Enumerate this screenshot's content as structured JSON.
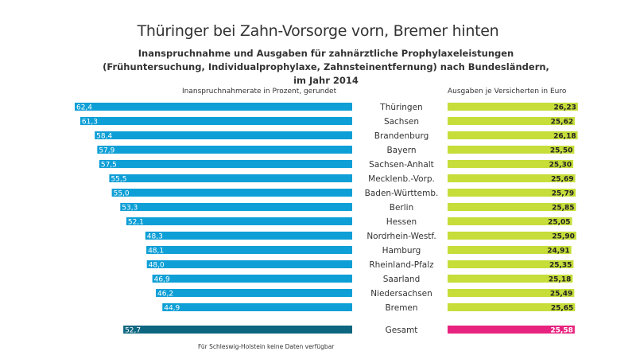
{
  "chart_data": {
    "type": "bar",
    "title": "Thüringer bei Zahn-Vorsorge vorn, Bremer hinten",
    "subtitle": "Inanspruchnahme und Ausgaben für zahnärztliche Prophylaxeleistungen (Frühuntersuchung, Individualprophylaxe, Zahnsteinentfernung) nach Bundesländern, im Jahr 2014",
    "categories": [
      "Thüringen",
      "Sachsen",
      "Brandenburg",
      "Bayern",
      "Sachsen-Anhalt",
      "Mecklenb.-Vorp.",
      "Baden-Württemb.",
      "Berlin",
      "Hessen",
      "Nordrhein-Westf.",
      "Hamburg",
      "Rheinland-Pfalz",
      "Saarland",
      "Niedersachsen",
      "Bremen"
    ],
    "series": [
      {
        "name": "Inanspruchnahmerate in Prozent, gerundet",
        "values": [
          62.4,
          61.3,
          58.4,
          57.9,
          57.5,
          55.5,
          55.0,
          53.3,
          52.1,
          48.3,
          48.1,
          48.0,
          46.9,
          46.2,
          44.9
        ],
        "labels": [
          "62,4",
          "61,3",
          "58,4",
          "57,9",
          "57,5",
          "55,5",
          "55,0",
          "53,3",
          "52,1",
          "48,3",
          "48,1",
          "48,0",
          "46,9",
          "46,2",
          "44,9"
        ],
        "color": "#0e9fd6",
        "direction": "left"
      },
      {
        "name": "Ausgaben je Versicherten in Euro",
        "values": [
          26.23,
          25.62,
          26.18,
          25.5,
          25.3,
          25.69,
          25.79,
          25.85,
          25.05,
          25.9,
          24.91,
          25.35,
          25.18,
          25.49,
          25.65
        ],
        "labels": [
          "26,23",
          "25,62",
          "26,18",
          "25,50",
          "25,30",
          "25,69",
          "25,79",
          "25,85",
          "25,05",
          "25,90",
          "24,91",
          "25,35",
          "25,18",
          "25,49",
          "25,65"
        ],
        "color": "#c6dd3a",
        "direction": "right"
      }
    ],
    "total": {
      "label": "Gesamt",
      "rate": 52.7,
      "rate_label": "52,7",
      "rate_color": "#0d6680",
      "expense": 25.58,
      "expense_label": "25,58",
      "expense_color": "#e8227f"
    },
    "footnote": "Für Schleswig-Holstein keine Daten verfügbar",
    "xlabel": "",
    "ylabel": "",
    "grid": false,
    "legend": "none"
  }
}
